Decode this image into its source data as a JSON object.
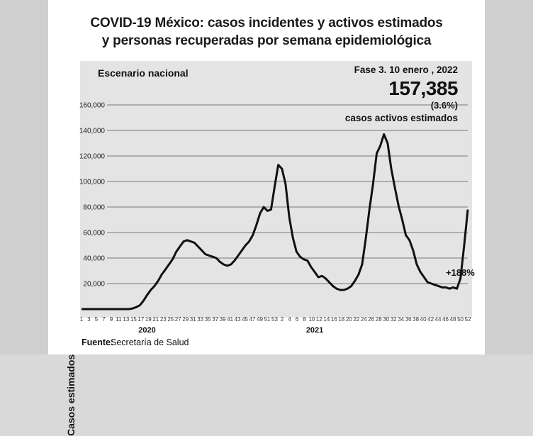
{
  "title_line1": "COVID-19 México: casos incidentes y activos estimados",
  "title_line2": "y personas recuperadas por semana epidemiológica",
  "subtitle": "Escenario nacional",
  "phase_label": "Fase 3. 10 enero , 2022",
  "active_cases": "157,385",
  "active_pct": "(3.6%)",
  "active_label": "casos activos estimados",
  "source_key": "Fuente:",
  "source_value": "Secretaría de Salud",
  "chart_data": {
    "type": "line",
    "ylabel": "Casos estimados",
    "ylim": [
      0,
      160000
    ],
    "yticks": [
      20000,
      40000,
      60000,
      80000,
      100000,
      120000,
      140000,
      160000
    ],
    "ytick_labels": [
      "20,000",
      "40,000",
      "60,000",
      "80,000",
      "100,000",
      "120,000",
      "140,000",
      "160,000"
    ],
    "grid": "horizontal",
    "x_tick_labels": [
      "1",
      "3",
      "5",
      "7",
      "9",
      "11",
      "13",
      "15",
      "17",
      "19",
      "21",
      "23",
      "25",
      "27",
      "29",
      "31",
      "33",
      "35",
      "37",
      "39",
      "41",
      "43",
      "45",
      "47",
      "49",
      "51",
      "53",
      "2",
      "4",
      "6",
      "8",
      "10",
      "12",
      "14",
      "16",
      "18",
      "20",
      "22",
      "24",
      "26",
      "28",
      "30",
      "32",
      "34",
      "36",
      "38",
      "40",
      "42",
      "44",
      "46",
      "48",
      "50",
      "52"
    ],
    "year_labels": [
      {
        "label": "2020",
        "week_index": 18
      },
      {
        "label": "2021",
        "week_index": 64
      }
    ],
    "annotation": "+188%",
    "series": [
      {
        "values": [
          0,
          0,
          0,
          0,
          0,
          0,
          0,
          0,
          0,
          0,
          0,
          0,
          0,
          0,
          500,
          1500,
          3000,
          6500,
          11000,
          15000,
          18000,
          22000,
          27000,
          31000,
          35000,
          39000,
          45000,
          49000,
          53000,
          54000,
          53000,
          52000,
          49000,
          46000,
          43000,
          42000,
          41000,
          40000,
          37000,
          35000,
          34000,
          35000,
          38000,
          42000,
          46000,
          50000,
          53000,
          58000,
          66000,
          75000,
          80000,
          77000,
          78000,
          96000,
          113000,
          110000,
          98000,
          72000,
          56000,
          45000,
          41000,
          39000,
          38000,
          33000,
          29000,
          25000,
          26000,
          24000,
          21000,
          18000,
          16000,
          15000,
          15000,
          16000,
          18000,
          22000,
          27000,
          35000,
          55000,
          78000,
          98000,
          122000,
          128000,
          137000,
          130000,
          110000,
          95000,
          81000,
          70000,
          58000,
          54000,
          46000,
          35000,
          29000,
          25000,
          21000,
          20000,
          19000,
          18000,
          17000,
          17000,
          16000,
          17000,
          16000,
          24000,
          50000,
          78000
        ]
      }
    ]
  }
}
